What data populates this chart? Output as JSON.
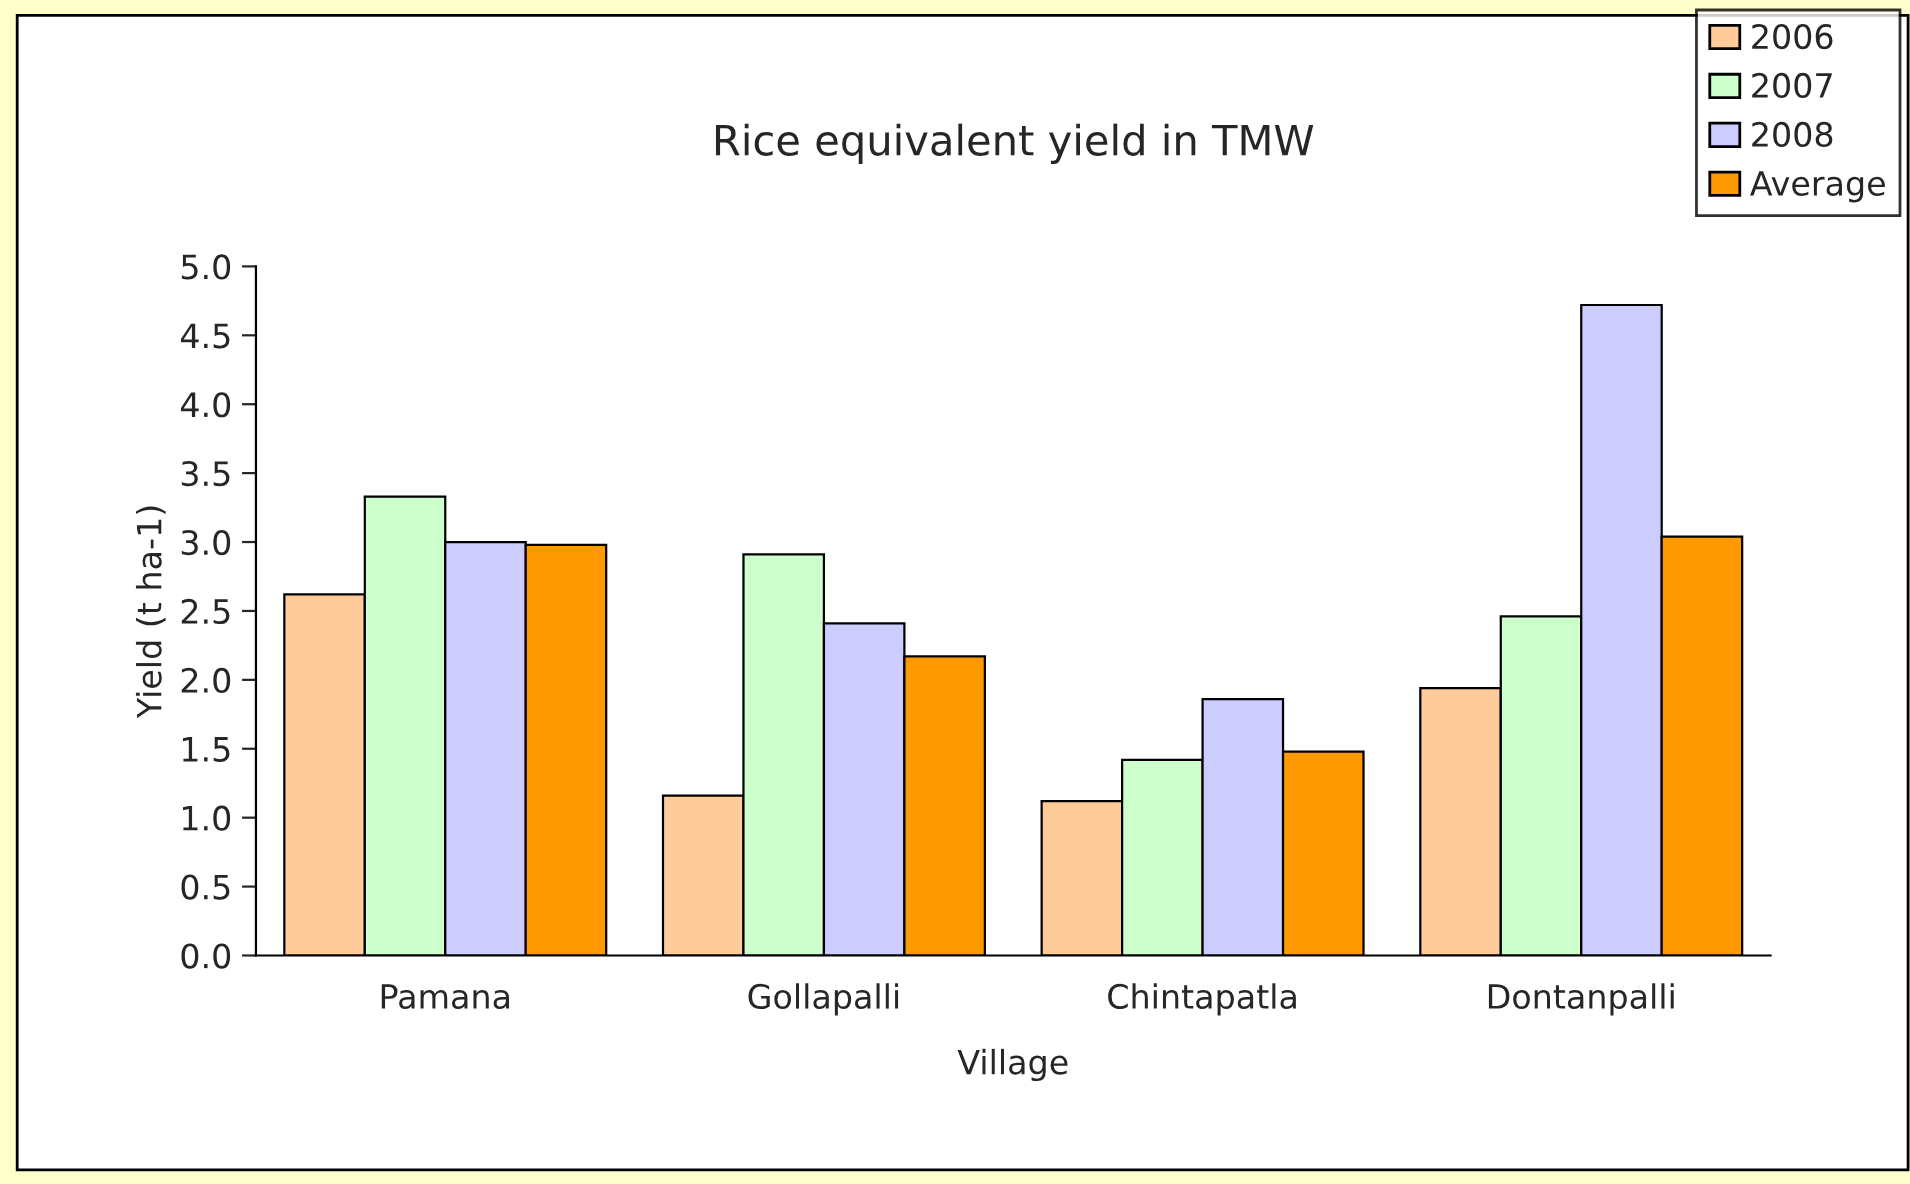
{
  "chart_data": {
    "type": "bar",
    "title": "Rice equivalent yield in TMW",
    "xlabel": "Village",
    "ylabel": "Yield (t ha-1)",
    "categories": [
      "Pamana",
      "Gollapalli",
      "Chintapatla",
      "Dontanpalli"
    ],
    "series": [
      {
        "name": "2006",
        "color": "#ffcc99",
        "values": [
          2.62,
          1.16,
          1.12,
          1.94
        ]
      },
      {
        "name": "2007",
        "color": "#ccffcc",
        "values": [
          3.33,
          2.91,
          1.42,
          2.46
        ]
      },
      {
        "name": "2008",
        "color": "#ccccff",
        "values": [
          3.0,
          2.41,
          1.86,
          4.72
        ]
      },
      {
        "name": "Average",
        "color": "#ff9900",
        "values": [
          2.98,
          2.17,
          1.48,
          3.04
        ]
      }
    ],
    "ylim": [
      0,
      5
    ],
    "yticks": [
      {
        "value": 0,
        "label": "0.0"
      },
      {
        "value": 0.5,
        "label": "0.5"
      },
      {
        "value": 1,
        "label": "1.0"
      },
      {
        "value": 1.5,
        "label": "1.5"
      },
      {
        "value": 2,
        "label": "2.0"
      },
      {
        "value": 2.5,
        "label": "2.5"
      },
      {
        "value": 3,
        "label": "3.0"
      },
      {
        "value": 3.5,
        "label": "3.5"
      },
      {
        "value": 4,
        "label": "4.0"
      },
      {
        "value": 4.5,
        "label": "4.5"
      },
      {
        "value": 5,
        "label": "5.0"
      }
    ],
    "grid": false,
    "legend": "top right"
  }
}
